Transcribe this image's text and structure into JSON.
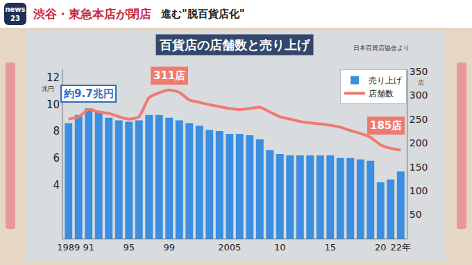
{
  "header": {
    "logo": "news 23",
    "headline": "渋谷・東急本店が閉店",
    "subheadline": "進む\"脱百貨店化\""
  },
  "chart_data": {
    "type": "bar",
    "title": "百貨店の店舗数と売り上げ",
    "subtitle": "日本百貨店協会より",
    "ylabel": "兆円",
    "y2label": "店",
    "categories": [
      "1989",
      null,
      "91",
      null,
      null,
      null,
      "95",
      null,
      null,
      null,
      "99",
      null,
      null,
      null,
      null,
      null,
      "2005",
      null,
      null,
      null,
      null,
      "10",
      null,
      null,
      null,
      null,
      "15",
      null,
      null,
      null,
      null,
      "20",
      null,
      "22年"
    ],
    "series": [
      {
        "name": "売り上げ",
        "type": "bar",
        "color": "#3b8ee0",
        "values": [
          8.6,
          9.2,
          9.7,
          9.4,
          9.0,
          8.8,
          8.7,
          8.8,
          9.2,
          9.2,
          9.0,
          8.8,
          8.6,
          8.4,
          8.1,
          8.0,
          7.8,
          7.8,
          7.7,
          7.4,
          6.6,
          6.3,
          6.2,
          6.2,
          6.2,
          6.2,
          6.2,
          6.0,
          6.0,
          5.9,
          5.8,
          4.2,
          4.4,
          5.0
        ]
      },
      {
        "name": "店舗数",
        "type": "line",
        "color": "#f07a70",
        "axis": "y2",
        "values": [
          250,
          255,
          270,
          265,
          262,
          255,
          250,
          255,
          295,
          305,
          311,
          306,
          290,
          285,
          280,
          276,
          272,
          270,
          272,
          275,
          265,
          255,
          250,
          245,
          242,
          240,
          237,
          233,
          226,
          220,
          212,
          196,
          189,
          185
        ]
      }
    ],
    "ylim": [
      0,
      12.6
    ],
    "yticks": [
      4,
      6,
      8,
      10,
      12
    ],
    "y2lim": [
      0,
      354
    ],
    "y2ticks": [
      50,
      100,
      150,
      200,
      250,
      300,
      350
    ],
    "annotations": [
      {
        "text": "約9.7兆円",
        "x": 2,
        "y": 9.7,
        "axis": "y",
        "color": "#2d6fc0"
      },
      {
        "text": "311店",
        "x": 10,
        "y": 311,
        "axis": "y2",
        "color": "#f07a70"
      },
      {
        "text": "185店",
        "x": 33,
        "y": 185,
        "axis": "y2",
        "color": "#f07a70"
      }
    ],
    "legend": "upper right",
    "grid": false
  }
}
